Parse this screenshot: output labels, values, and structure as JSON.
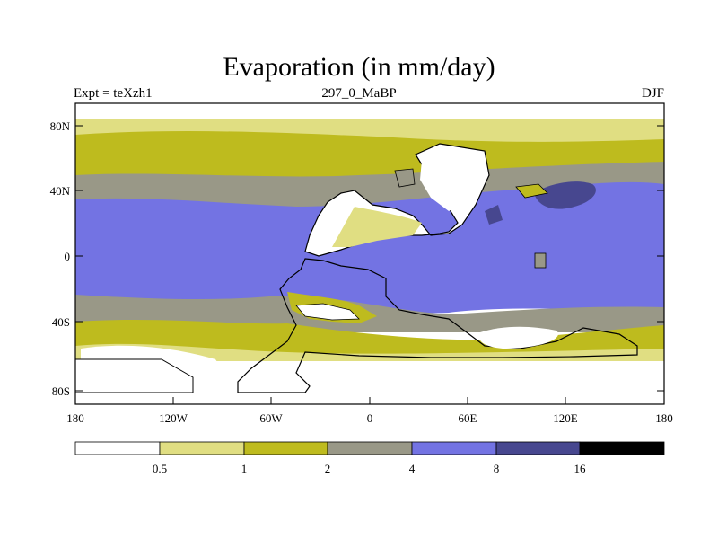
{
  "title": "Evaporation (in mm/day)",
  "subtitle_left": "Expt = teXzh1",
  "subtitle_center": "297_0_MaBP",
  "subtitle_right": "DJF",
  "map": {
    "lat_ticks": [
      "80N",
      "40N",
      "0",
      "40S",
      "80S"
    ],
    "lon_ticks": [
      "180",
      "120W",
      "60W",
      "0",
      "60E",
      "120E",
      "180"
    ]
  },
  "legend": {
    "labels": [
      "0.5",
      "1",
      "2",
      "4",
      "8",
      "16"
    ],
    "colors": [
      "#ffffff",
      "#e0de82",
      "#bebb1e",
      "#999887",
      "#7373e3",
      "#47478f",
      "#000000"
    ]
  },
  "colors": {
    "ocean_mid": "#7373e3",
    "land_white": "#ffffff",
    "grey": "#999887",
    "olive": "#bebb1e",
    "pale": "#e0de82",
    "dark_blue": "#47478f"
  }
}
